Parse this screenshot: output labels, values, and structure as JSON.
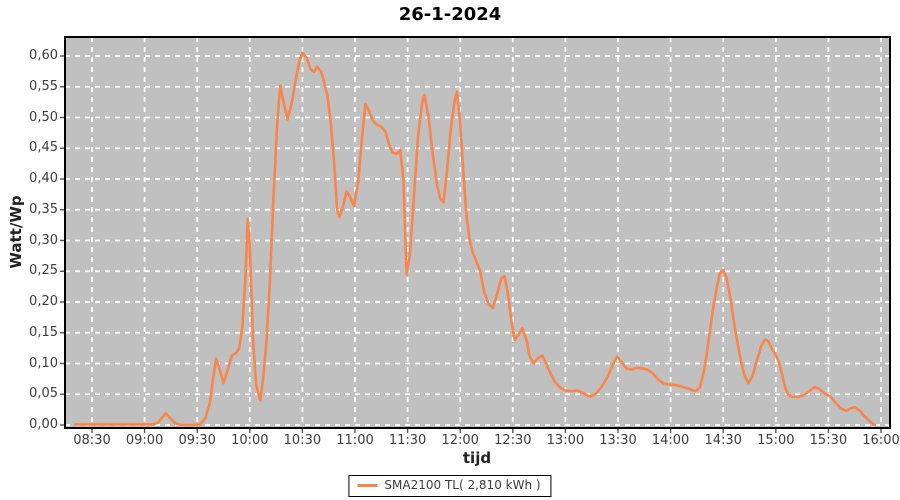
{
  "chart_data": {
    "type": "line",
    "title": "26-1-2024",
    "xlabel": "tijd",
    "ylabel": "Watt/Wp",
    "grid": "white dashed on gray plot background",
    "legend_position": "bottom-center",
    "x_tick_labels": [
      "08:30",
      "09:00",
      "09:30",
      "10:00",
      "10:30",
      "11:00",
      "11:30",
      "12:00",
      "12:30",
      "13:00",
      "13:30",
      "14:00",
      "14:30",
      "15:00",
      "15:30",
      "16:00"
    ],
    "x_tick_hours": [
      8.5,
      9,
      9.5,
      10,
      10.5,
      11,
      11.5,
      12,
      12.5,
      13,
      13.5,
      14,
      14.5,
      15,
      15.5,
      16
    ],
    "y_tick_labels": [
      "0,00",
      "0,05",
      "0,10",
      "0,15",
      "0,20",
      "0,25",
      "0,30",
      "0,35",
      "0,40",
      "0,45",
      "0,50",
      "0,55",
      "0,60"
    ],
    "y_tick_values": [
      0,
      0.05,
      0.1,
      0.15,
      0.2,
      0.25,
      0.3,
      0.35,
      0.4,
      0.45,
      0.5,
      0.55,
      0.6
    ],
    "x_range_hours": [
      8.24,
      16.09
    ],
    "ylim": [
      0,
      0.63
    ],
    "colors": {
      "plot_background": "#C0C0C0",
      "gridline": "#FFFFFF",
      "plot_border": "#000000",
      "series_line": "#F9854B",
      "tick_text": "#3D3D3D"
    },
    "series": [
      {
        "name": "SMA2100 TL",
        "legend_label": "SMA2100 TL( 2,810 kWh )",
        "total_energy": "2,810 kWh",
        "color": "#F9854B",
        "points": [
          [
            8.34,
            0.001
          ],
          [
            8.45,
            0.001
          ],
          [
            8.6,
            0.001
          ],
          [
            8.75,
            0.001
          ],
          [
            8.9,
            0.001
          ],
          [
            9.0,
            0.001
          ],
          [
            9.08,
            0.001
          ],
          [
            9.13,
            0.004
          ],
          [
            9.17,
            0.013
          ],
          [
            9.2,
            0.019
          ],
          [
            9.24,
            0.012
          ],
          [
            9.29,
            0.003
          ],
          [
            9.35,
            0
          ],
          [
            9.45,
            0
          ],
          [
            9.53,
            0.001
          ],
          [
            9.58,
            0.012
          ],
          [
            9.62,
            0.035
          ],
          [
            9.65,
            0.075
          ],
          [
            9.68,
            0.108
          ],
          [
            9.71,
            0.092
          ],
          [
            9.75,
            0.068
          ],
          [
            9.79,
            0.09
          ],
          [
            9.83,
            0.113
          ],
          [
            9.87,
            0.117
          ],
          [
            9.9,
            0.125
          ],
          [
            9.93,
            0.16
          ],
          [
            9.96,
            0.245
          ],
          [
            9.98,
            0.335
          ],
          [
            10.0,
            0.29
          ],
          [
            10.03,
            0.14
          ],
          [
            10.06,
            0.065
          ],
          [
            10.1,
            0.04
          ],
          [
            10.13,
            0.08
          ],
          [
            10.16,
            0.14
          ],
          [
            10.19,
            0.23
          ],
          [
            10.22,
            0.35
          ],
          [
            10.26,
            0.49
          ],
          [
            10.29,
            0.552
          ],
          [
            10.32,
            0.525
          ],
          [
            10.36,
            0.497
          ],
          [
            10.4,
            0.525
          ],
          [
            10.44,
            0.565
          ],
          [
            10.47,
            0.59
          ],
          [
            10.5,
            0.605
          ],
          [
            10.54,
            0.597
          ],
          [
            10.58,
            0.578
          ],
          [
            10.61,
            0.574
          ],
          [
            10.64,
            0.583
          ],
          [
            10.68,
            0.574
          ],
          [
            10.71,
            0.555
          ],
          [
            10.74,
            0.533
          ],
          [
            10.77,
            0.49
          ],
          [
            10.8,
            0.43
          ],
          [
            10.83,
            0.35
          ],
          [
            10.85,
            0.338
          ],
          [
            10.88,
            0.352
          ],
          [
            10.92,
            0.38
          ],
          [
            10.95,
            0.372
          ],
          [
            10.99,
            0.356
          ],
          [
            11.03,
            0.395
          ],
          [
            11.06,
            0.455
          ],
          [
            11.1,
            0.522
          ],
          [
            11.13,
            0.512
          ],
          [
            11.17,
            0.495
          ],
          [
            11.21,
            0.488
          ],
          [
            11.25,
            0.485
          ],
          [
            11.29,
            0.477
          ],
          [
            11.33,
            0.453
          ],
          [
            11.36,
            0.443
          ],
          [
            11.4,
            0.441
          ],
          [
            11.43,
            0.447
          ],
          [
            11.46,
            0.4
          ],
          [
            11.49,
            0.245
          ],
          [
            11.52,
            0.275
          ],
          [
            11.56,
            0.37
          ],
          [
            11.6,
            0.47
          ],
          [
            11.64,
            0.525
          ],
          [
            11.66,
            0.537
          ],
          [
            11.7,
            0.5
          ],
          [
            11.74,
            0.44
          ],
          [
            11.78,
            0.39
          ],
          [
            11.81,
            0.368
          ],
          [
            11.84,
            0.362
          ],
          [
            11.87,
            0.405
          ],
          [
            11.91,
            0.48
          ],
          [
            11.95,
            0.53
          ],
          [
            11.97,
            0.542
          ],
          [
            12.0,
            0.49
          ],
          [
            12.03,
            0.41
          ],
          [
            12.06,
            0.34
          ],
          [
            12.09,
            0.3
          ],
          [
            12.12,
            0.28
          ],
          [
            12.15,
            0.268
          ],
          [
            12.19,
            0.25
          ],
          [
            12.23,
            0.215
          ],
          [
            12.27,
            0.197
          ],
          [
            12.31,
            0.19
          ],
          [
            12.35,
            0.212
          ],
          [
            12.39,
            0.238
          ],
          [
            12.42,
            0.242
          ],
          [
            12.45,
            0.218
          ],
          [
            12.49,
            0.165
          ],
          [
            12.52,
            0.138
          ],
          [
            12.55,
            0.146
          ],
          [
            12.59,
            0.157
          ],
          [
            12.63,
            0.138
          ],
          [
            12.66,
            0.112
          ],
          [
            12.7,
            0.1
          ],
          [
            12.74,
            0.109
          ],
          [
            12.78,
            0.113
          ],
          [
            12.82,
            0.099
          ],
          [
            12.86,
            0.083
          ],
          [
            12.9,
            0.07
          ],
          [
            12.95,
            0.061
          ],
          [
            13.0,
            0.056
          ],
          [
            13.06,
            0.055
          ],
          [
            13.11,
            0.056
          ],
          [
            13.16,
            0.053
          ],
          [
            13.21,
            0.048
          ],
          [
            13.24,
            0.046
          ],
          [
            13.29,
            0.051
          ],
          [
            13.34,
            0.061
          ],
          [
            13.4,
            0.078
          ],
          [
            13.45,
            0.098
          ],
          [
            13.49,
            0.111
          ],
          [
            13.53,
            0.103
          ],
          [
            13.58,
            0.092
          ],
          [
            13.63,
            0.09
          ],
          [
            13.68,
            0.093
          ],
          [
            13.73,
            0.092
          ],
          [
            13.78,
            0.09
          ],
          [
            13.83,
            0.084
          ],
          [
            13.88,
            0.074
          ],
          [
            13.93,
            0.068
          ],
          [
            13.98,
            0.066
          ],
          [
            14.04,
            0.065
          ],
          [
            14.1,
            0.063
          ],
          [
            14.15,
            0.06
          ],
          [
            14.2,
            0.057
          ],
          [
            14.24,
            0.055
          ],
          [
            14.28,
            0.062
          ],
          [
            14.32,
            0.09
          ],
          [
            14.36,
            0.135
          ],
          [
            14.4,
            0.185
          ],
          [
            14.44,
            0.225
          ],
          [
            14.47,
            0.247
          ],
          [
            14.5,
            0.252
          ],
          [
            14.53,
            0.24
          ],
          [
            14.57,
            0.205
          ],
          [
            14.61,
            0.158
          ],
          [
            14.66,
            0.112
          ],
          [
            14.7,
            0.082
          ],
          [
            14.74,
            0.068
          ],
          [
            14.78,
            0.08
          ],
          [
            14.82,
            0.105
          ],
          [
            14.86,
            0.128
          ],
          [
            14.9,
            0.139
          ],
          [
            14.93,
            0.136
          ],
          [
            14.97,
            0.122
          ],
          [
            15.0,
            0.113
          ],
          [
            15.03,
            0.102
          ],
          [
            15.06,
            0.082
          ],
          [
            15.09,
            0.06
          ],
          [
            15.12,
            0.049
          ],
          [
            15.16,
            0.0455
          ],
          [
            15.21,
            0.0455
          ],
          [
            15.26,
            0.048
          ],
          [
            15.31,
            0.054
          ],
          [
            15.37,
            0.062
          ],
          [
            15.41,
            0.059
          ],
          [
            15.46,
            0.052
          ],
          [
            15.52,
            0.046
          ],
          [
            15.57,
            0.036
          ],
          [
            15.62,
            0.027
          ],
          [
            15.67,
            0.023
          ],
          [
            15.71,
            0.027
          ],
          [
            15.75,
            0.029
          ],
          [
            15.8,
            0.023
          ],
          [
            15.85,
            0.013
          ],
          [
            15.9,
            0.005
          ],
          [
            15.94,
            0
          ]
        ]
      }
    ]
  }
}
